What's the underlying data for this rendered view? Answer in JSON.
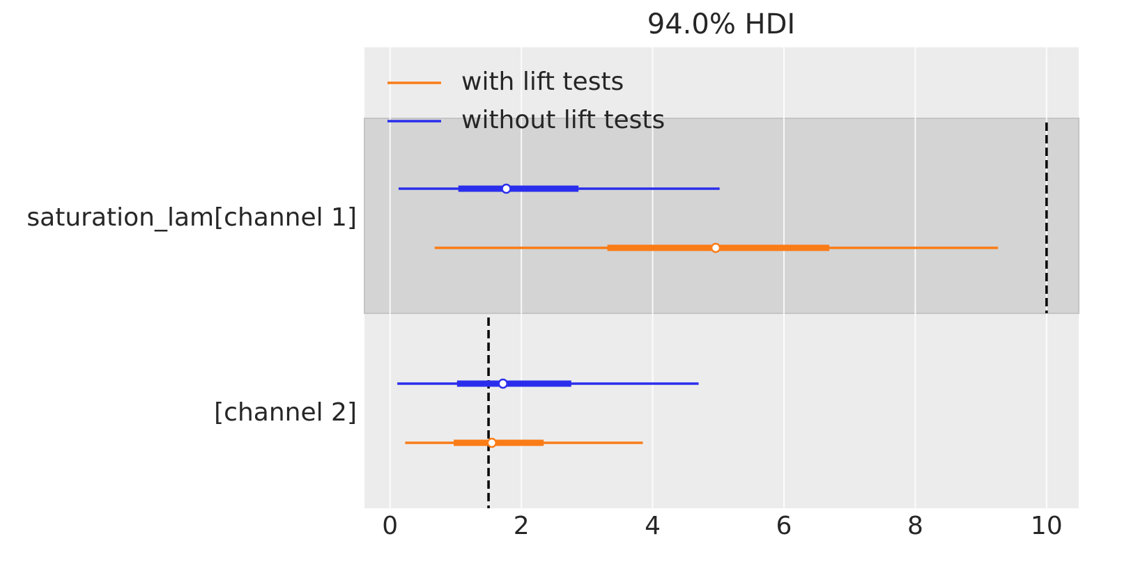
{
  "chart_data": {
    "type": "forest",
    "title": "94.0% HDI",
    "categories": [
      "saturation_lam[channel 1]",
      "[channel 2]"
    ],
    "series": [
      {
        "name": "with lift tests",
        "color": "#fa7c17",
        "values": [
          4.96,
          1.55
        ],
        "hdi94": [
          [
            0.68,
            9.26
          ],
          [
            0.23,
            3.85
          ]
        ],
        "hdi50": [
          [
            3.31,
            6.69
          ],
          [
            0.97,
            2.34
          ]
        ]
      },
      {
        "name": "without lift tests",
        "color": "#2a2eec",
        "values": [
          1.77,
          1.72
        ],
        "hdi94": [
          [
            0.13,
            5.02
          ],
          [
            0.11,
            4.7
          ]
        ],
        "hdi50": [
          [
            1.04,
            2.87
          ],
          [
            1.02,
            2.76
          ]
        ]
      }
    ],
    "reference_values": [
      10,
      1.5
    ],
    "xlim": [
      -0.39,
      10.49
    ],
    "xticks": [
      0,
      2,
      4,
      6,
      8,
      10
    ],
    "grid": true,
    "legend": "upper left"
  }
}
